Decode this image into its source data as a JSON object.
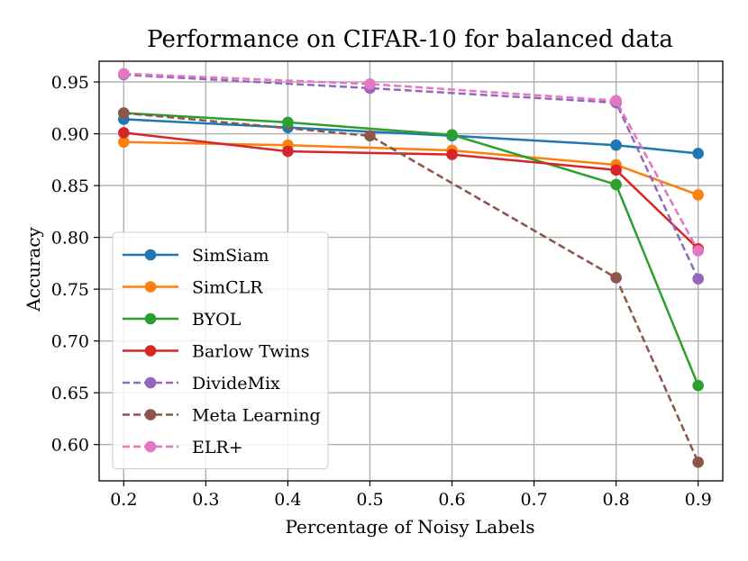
{
  "chart_data": {
    "type": "line",
    "title": "Performance on CIFAR-10 for balanced data",
    "xlabel": "Percentage of Noisy Labels",
    "ylabel": "Accuracy",
    "xlim": [
      0.17,
      0.93
    ],
    "ylim": [
      0.565,
      0.97
    ],
    "xticks": [
      0.2,
      0.3,
      0.4,
      0.5,
      0.6,
      0.7,
      0.8,
      0.9
    ],
    "xtick_labels": [
      "0.2",
      "0.3",
      "0.4",
      "0.5",
      "0.6",
      "0.7",
      "0.8",
      "0.9"
    ],
    "yticks": [
      0.6,
      0.65,
      0.7,
      0.75,
      0.8,
      0.85,
      0.9,
      0.95
    ],
    "ytick_labels": [
      "0.60",
      "0.65",
      "0.70",
      "0.75",
      "0.80",
      "0.85",
      "0.90",
      "0.95"
    ],
    "grid": true,
    "legend_position": "center-left",
    "series": [
      {
        "name": "SimSiam",
        "color": "#1f77b4",
        "dashed": false,
        "x": [
          0.2,
          0.4,
          0.6,
          0.8,
          0.9
        ],
        "values": [
          0.914,
          0.906,
          0.898,
          0.889,
          0.881
        ]
      },
      {
        "name": "SimCLR",
        "color": "#ff7f0e",
        "dashed": false,
        "x": [
          0.2,
          0.4,
          0.6,
          0.8,
          0.9
        ],
        "values": [
          0.892,
          0.889,
          0.884,
          0.87,
          0.841
        ]
      },
      {
        "name": "BYOL",
        "color": "#2ca02c",
        "dashed": false,
        "x": [
          0.2,
          0.4,
          0.6,
          0.8,
          0.9
        ],
        "values": [
          0.92,
          0.911,
          0.899,
          0.851,
          0.657
        ]
      },
      {
        "name": "Barlow Twins",
        "color": "#d62728",
        "dashed": false,
        "x": [
          0.2,
          0.4,
          0.6,
          0.8,
          0.9
        ],
        "values": [
          0.901,
          0.883,
          0.88,
          0.865,
          0.789
        ]
      },
      {
        "name": "DivideMix",
        "color": "#9467bd",
        "dashed": true,
        "x": [
          0.2,
          0.5,
          0.8,
          0.9
        ],
        "values": [
          0.957,
          0.944,
          0.93,
          0.76
        ]
      },
      {
        "name": "Meta Learning",
        "color": "#8c564b",
        "dashed": true,
        "x": [
          0.2,
          0.5,
          0.8,
          0.9
        ],
        "values": [
          0.92,
          0.898,
          0.761,
          0.583
        ]
      },
      {
        "name": "ELR+",
        "color": "#e377c2",
        "dashed": true,
        "x": [
          0.2,
          0.5,
          0.8,
          0.9
        ],
        "values": [
          0.958,
          0.948,
          0.932,
          0.787
        ]
      }
    ]
  }
}
